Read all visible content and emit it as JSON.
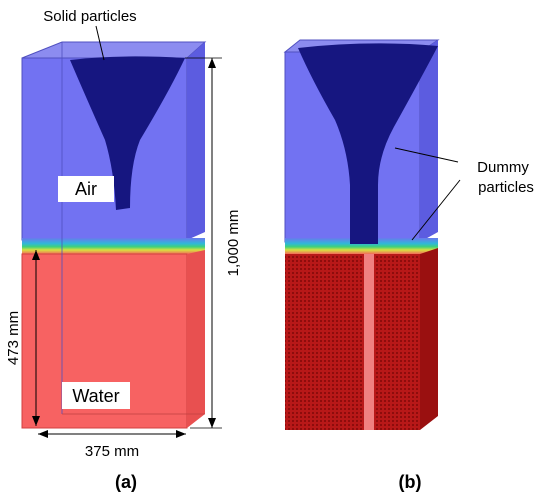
{
  "figure": {
    "panels": [
      {
        "label": "(a)",
        "top_label": "Solid particles",
        "air_label": "Air",
        "water_label": "Water",
        "height_label": "1,000 mm",
        "water_depth_label": "473 mm",
        "width_label": "375 mm"
      },
      {
        "label": "(b)",
        "dummy_label_line1": "Dummy",
        "dummy_label_line2": "particles"
      }
    ]
  }
}
